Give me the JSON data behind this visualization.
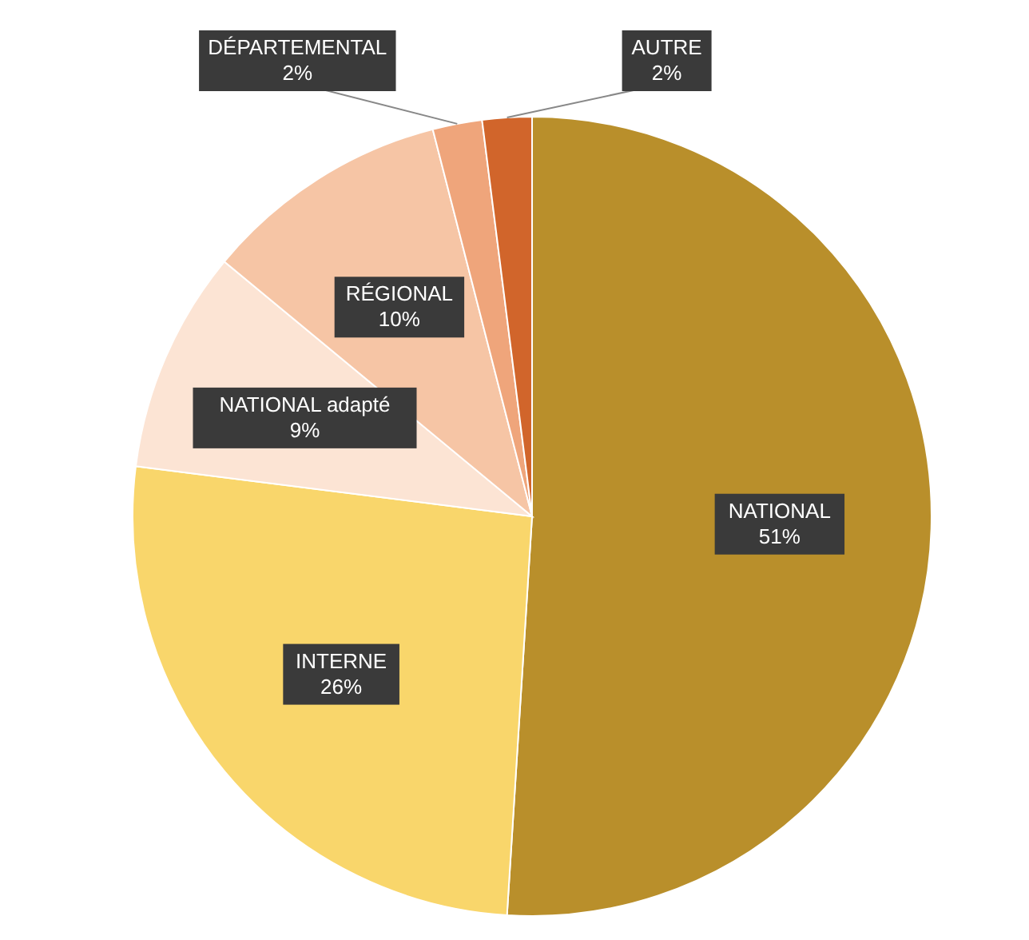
{
  "chart_data": {
    "type": "pie",
    "categories": [
      "NATIONAL",
      "INTERNE",
      "NATIONAL adapté",
      "RÉGIONAL",
      "DÉPARTEMENTAL",
      "AUTRE"
    ],
    "values": [
      51,
      26,
      9,
      10,
      2,
      2
    ],
    "colors": [
      "#b98f2b",
      "#f9d66b",
      "#fce4d4",
      "#f6c5a5",
      "#efa57b",
      "#d1652b"
    ],
    "value_labels": [
      "51%",
      "26%",
      "9%",
      "10%",
      "2%",
      "2%"
    ]
  }
}
